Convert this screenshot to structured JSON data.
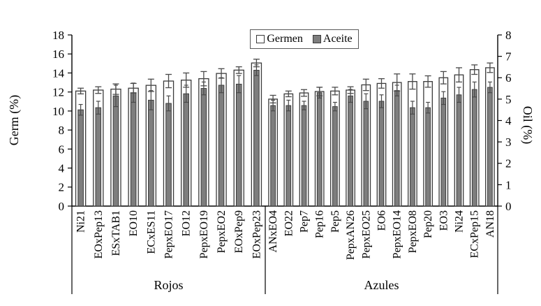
{
  "chart_data": {
    "type": "bar",
    "title": "",
    "grid": false,
    "legend": {
      "position": "top-center",
      "entries": [
        "Germen",
        "Aceite"
      ]
    },
    "axes": {
      "left": {
        "label": "Germ (%)",
        "min": 0,
        "max": 18,
        "step": 2
      },
      "right": {
        "label": "Oil (%)",
        "min": 0,
        "max": 8,
        "step": 1
      }
    },
    "groups": [
      {
        "name": "Rojos",
        "categories": [
          "Ni21",
          "EOxPep13",
          "ESxTAB1",
          "EO10",
          "ECxES11",
          "PepxEO17",
          "EO12",
          "PepxEO19",
          "PepxEO2",
          "EOxPep9",
          "EOxPep23"
        ]
      },
      {
        "name": "Azules",
        "categories": [
          "ANxEO4",
          "EO22",
          "Pep7",
          "Pep16",
          "Pep5",
          "PepxAN26",
          "PepxEO25",
          "EO6",
          "PepxEO14",
          "PepxEO8",
          "Pep20",
          "EO3",
          "Ni24",
          "ECxPep15",
          "AN18"
        ]
      }
    ],
    "series": [
      {
        "name": "Germen",
        "axis": "left",
        "fill": "#ffffff",
        "values": [
          12.1,
          12.2,
          12.3,
          12.4,
          12.7,
          13.15,
          13.25,
          13.4,
          13.95,
          14.3,
          15.05,
          11.25,
          11.8,
          11.9,
          12.05,
          12.1,
          12.2,
          12.75,
          12.9,
          13.0,
          13.1,
          13.1,
          13.5,
          13.8,
          14.35,
          14.55
        ],
        "errors": [
          0.3,
          0.35,
          0.55,
          0.5,
          0.65,
          0.7,
          0.75,
          0.75,
          0.5,
          0.35,
          0.4,
          0.4,
          0.3,
          0.35,
          0.45,
          0.4,
          0.35,
          0.6,
          0.5,
          0.9,
          0.8,
          0.6,
          0.65,
          0.75,
          0.5,
          0.5
        ]
      },
      {
        "name": "Aceite",
        "axis": "right",
        "fill": "#7e7e7e",
        "values": [
          4.5,
          4.6,
          5.15,
          5.3,
          4.95,
          4.8,
          5.25,
          5.5,
          5.65,
          5.7,
          6.35,
          4.7,
          4.7,
          4.7,
          5.3,
          4.65,
          5.15,
          4.9,
          4.9,
          5.4,
          4.6,
          4.6,
          5.05,
          5.2,
          5.45,
          5.55
        ],
        "errors": [
          0.25,
          0.3,
          0.5,
          0.45,
          0.45,
          0.35,
          0.4,
          0.3,
          0.35,
          0.4,
          0.25,
          0.25,
          0.25,
          0.2,
          0.25,
          0.2,
          0.3,
          0.35,
          0.3,
          0.25,
          0.3,
          0.25,
          0.3,
          0.35,
          0.35,
          0.25
        ]
      }
    ],
    "colors": {
      "bar_outline": "#3a3a3a",
      "error_bar": "#4a4a4a",
      "axis": "#000000",
      "text": "#000000"
    }
  }
}
